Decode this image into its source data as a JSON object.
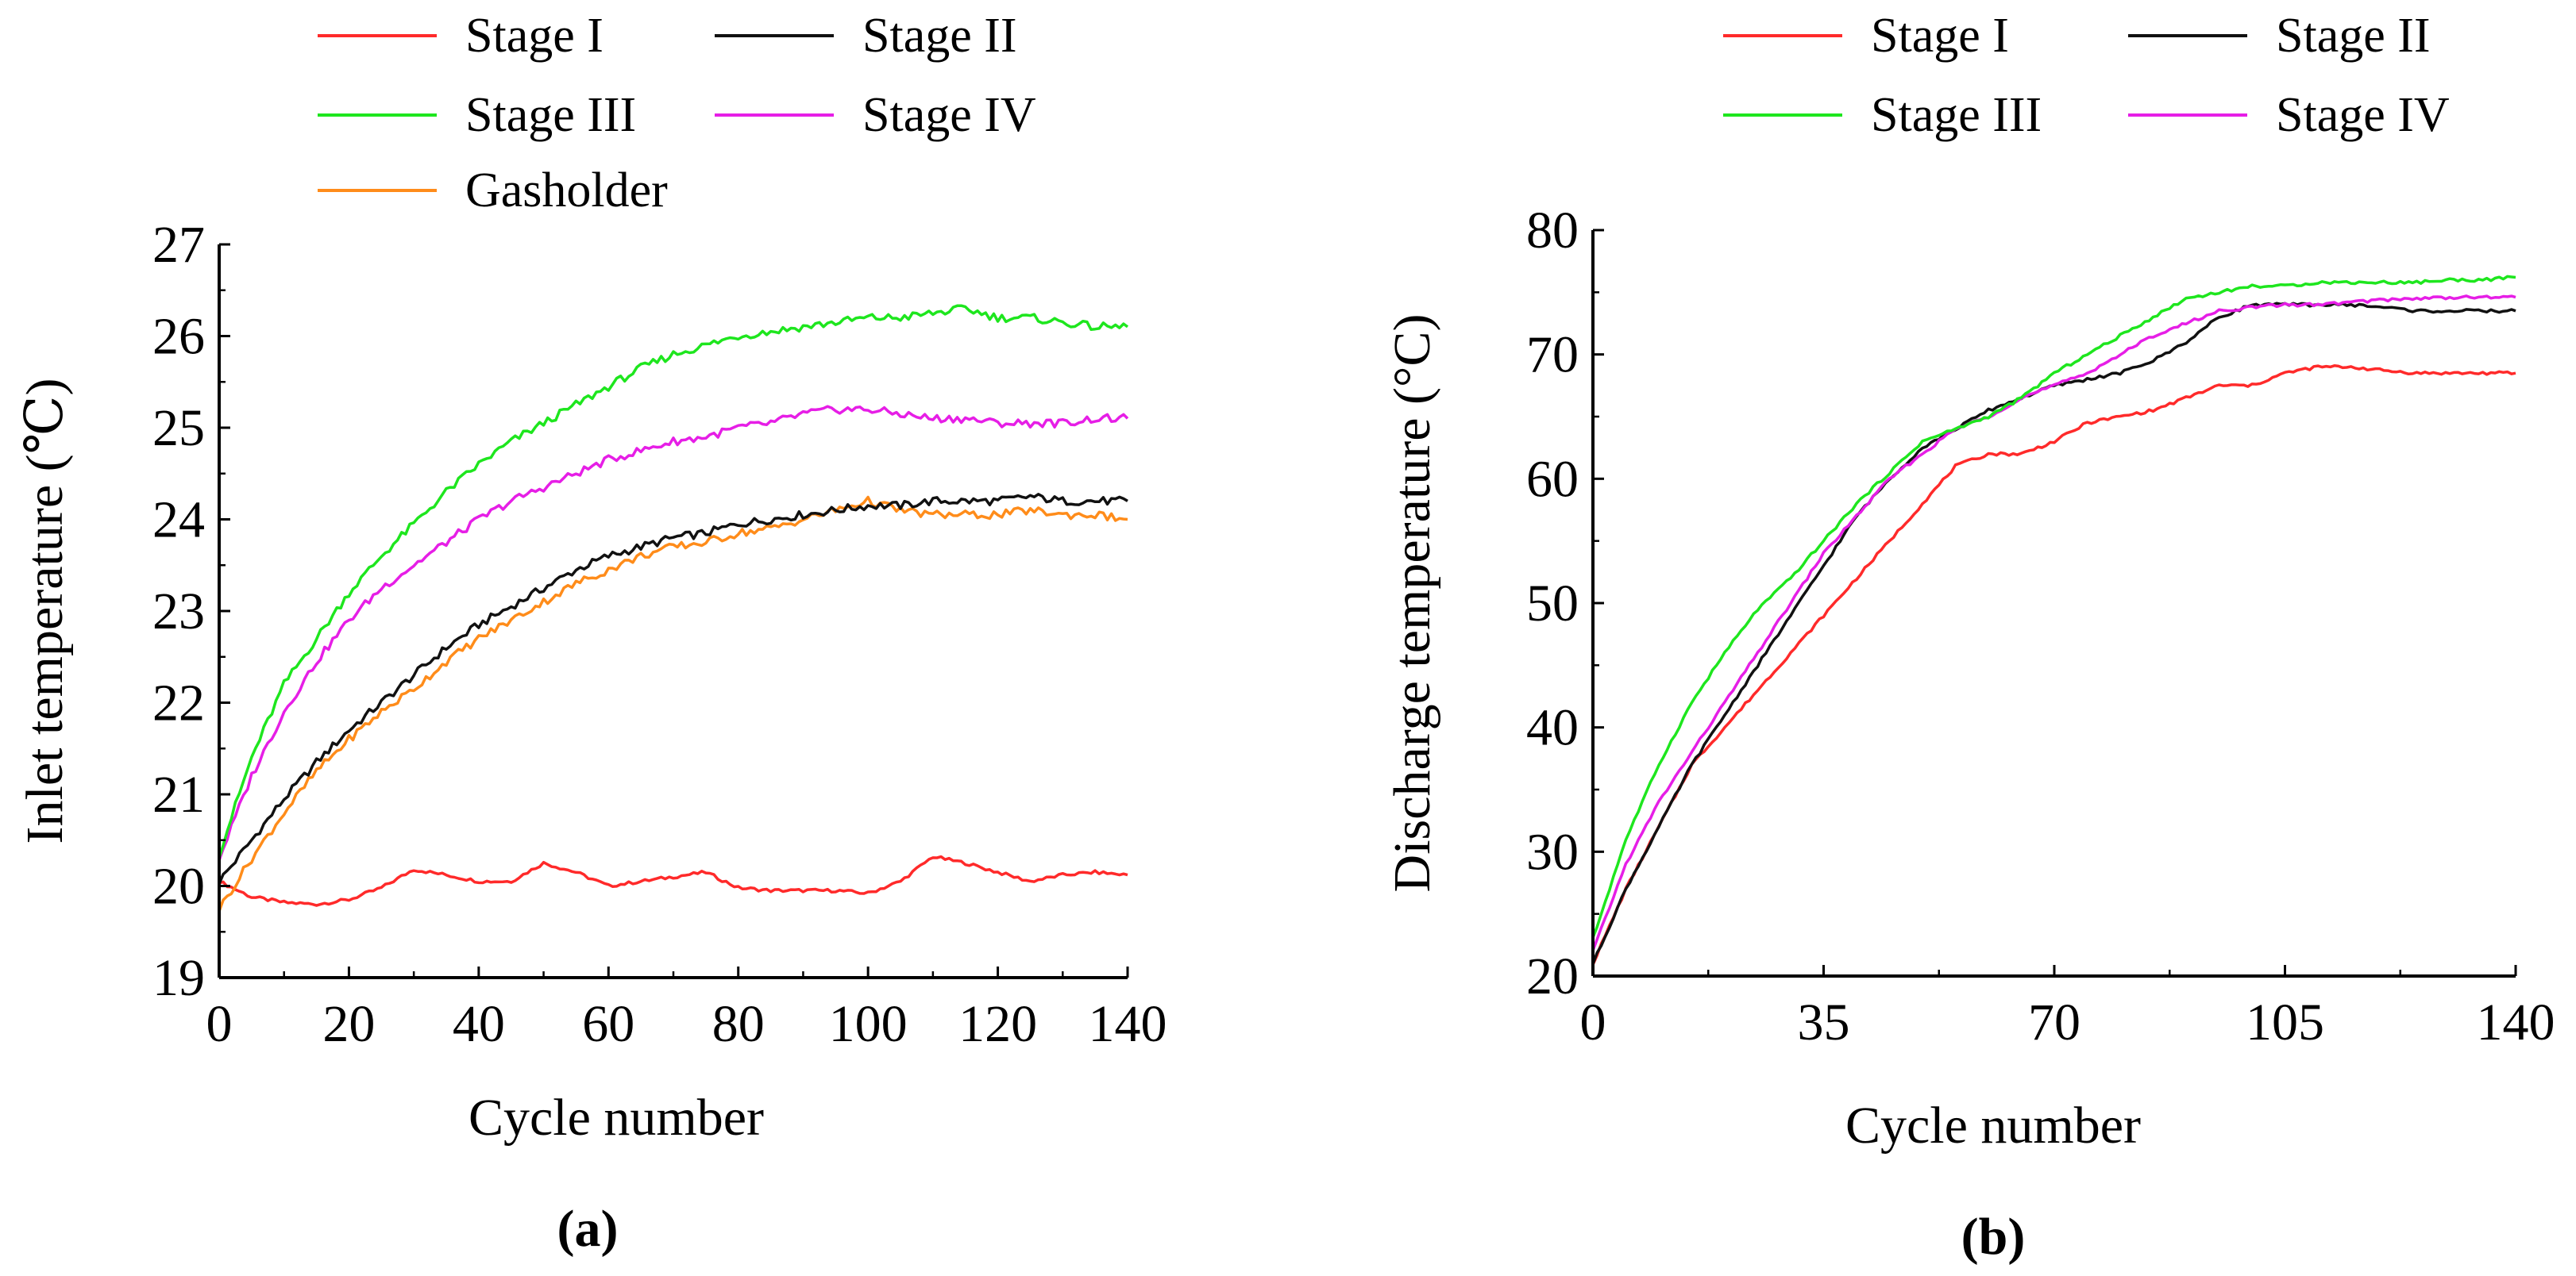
{
  "chart_data": [
    {
      "type": "line",
      "caption": "(a)",
      "xlabel": "Cycle number",
      "ylabel": "Inlet temperature (℃)",
      "xlim": [
        0,
        140
      ],
      "ylim": [
        19,
        27
      ],
      "x_ticks": [
        0,
        20,
        40,
        60,
        80,
        100,
        120,
        140
      ],
      "y_ticks": [
        19,
        20,
        21,
        22,
        23,
        24,
        25,
        26,
        27
      ],
      "legend": {
        "position": "top",
        "columns": 2
      },
      "series": [
        {
          "name": "Stage I",
          "color": "#ff2a2a",
          "x": [
            0,
            5,
            10,
            15,
            20,
            25,
            30,
            35,
            40,
            45,
            50,
            55,
            60,
            65,
            70,
            75,
            80,
            85,
            90,
            95,
            100,
            105,
            110,
            115,
            120,
            125,
            130,
            135,
            140
          ],
          "y": [
            20.05,
            19.88,
            19.82,
            19.8,
            19.85,
            19.98,
            20.18,
            20.12,
            20.05,
            20.05,
            20.25,
            20.15,
            20.0,
            20.05,
            20.1,
            20.15,
            19.98,
            19.95,
            19.95,
            19.95,
            19.92,
            20.05,
            20.32,
            20.25,
            20.15,
            20.05,
            20.12,
            20.15,
            20.12
          ]
        },
        {
          "name": "Stage II",
          "color": "#111111",
          "x": [
            0,
            5,
            10,
            15,
            20,
            25,
            30,
            35,
            40,
            45,
            50,
            55,
            60,
            65,
            70,
            75,
            80,
            85,
            90,
            95,
            100,
            105,
            110,
            115,
            120,
            125,
            130,
            135,
            140
          ],
          "y": [
            20.05,
            20.5,
            20.95,
            21.35,
            21.7,
            22.0,
            22.3,
            22.6,
            22.85,
            23.05,
            23.25,
            23.45,
            23.6,
            23.7,
            23.8,
            23.85,
            23.95,
            24.0,
            24.05,
            24.1,
            24.15,
            24.15,
            24.2,
            24.2,
            24.2,
            24.25,
            24.2,
            24.2,
            24.2
          ]
        },
        {
          "name": "Stage III",
          "color": "#1ee61e",
          "x": [
            0,
            5,
            10,
            15,
            20,
            25,
            30,
            35,
            40,
            45,
            50,
            55,
            60,
            65,
            70,
            75,
            80,
            85,
            90,
            95,
            100,
            105,
            110,
            115,
            120,
            125,
            130,
            135,
            140
          ],
          "y": [
            20.35,
            21.4,
            22.2,
            22.7,
            23.2,
            23.6,
            23.95,
            24.3,
            24.6,
            24.85,
            25.05,
            25.25,
            25.45,
            25.65,
            25.8,
            25.9,
            26.0,
            26.05,
            26.1,
            26.15,
            26.2,
            26.2,
            26.25,
            26.3,
            26.2,
            26.2,
            26.15,
            26.1,
            26.1
          ]
        },
        {
          "name": "Stage IV",
          "color": "#e61ee6",
          "x": [
            0,
            5,
            10,
            15,
            20,
            25,
            30,
            35,
            40,
            45,
            50,
            55,
            60,
            65,
            70,
            75,
            80,
            85,
            90,
            95,
            100,
            105,
            110,
            115,
            120,
            125,
            130,
            135,
            140
          ],
          "y": [
            20.3,
            21.2,
            21.9,
            22.45,
            22.9,
            23.25,
            23.5,
            23.75,
            24.0,
            24.2,
            24.35,
            24.5,
            24.65,
            24.75,
            24.85,
            24.9,
            25.0,
            25.05,
            25.15,
            25.2,
            25.2,
            25.15,
            25.1,
            25.1,
            25.05,
            25.05,
            25.05,
            25.1,
            25.1
          ]
        },
        {
          "name": "Gasholder",
          "color": "#ff8c1a",
          "x": [
            0,
            5,
            10,
            15,
            20,
            25,
            30,
            35,
            40,
            45,
            50,
            55,
            60,
            65,
            70,
            75,
            80,
            85,
            90,
            95,
            100,
            105,
            110,
            115,
            120,
            125,
            130,
            135,
            140
          ],
          "y": [
            19.75,
            20.3,
            20.8,
            21.25,
            21.6,
            21.9,
            22.15,
            22.45,
            22.7,
            22.9,
            23.1,
            23.3,
            23.45,
            23.6,
            23.7,
            23.75,
            23.85,
            23.9,
            24.0,
            24.1,
            24.2,
            24.1,
            24.05,
            24.05,
            24.05,
            24.1,
            24.05,
            24.05,
            24.0
          ]
        }
      ]
    },
    {
      "type": "line",
      "caption": "(b)",
      "xlabel": "Cycle number",
      "ylabel": "Discharge temperature (°C)",
      "xlim": [
        0,
        140
      ],
      "ylim": [
        20,
        80
      ],
      "x_ticks": [
        0,
        35,
        70,
        105,
        140
      ],
      "y_ticks": [
        20,
        30,
        40,
        50,
        60,
        70,
        80
      ],
      "legend": {
        "position": "top",
        "columns": 2
      },
      "series": [
        {
          "name": "Stage I",
          "color": "#ff2a2a",
          "x": [
            0,
            5,
            10,
            15,
            20,
            25,
            30,
            35,
            40,
            45,
            50,
            55,
            60,
            65,
            70,
            75,
            80,
            85,
            90,
            95,
            100,
            105,
            110,
            115,
            120,
            125,
            130,
            135,
            140
          ],
          "y": [
            21,
            27,
            32,
            37,
            40,
            43,
            46,
            49,
            52,
            55,
            58,
            61,
            62,
            62,
            63,
            64.5,
            65,
            65.5,
            66.5,
            67.5,
            67.5,
            68.5,
            69,
            69,
            68.7,
            68.5,
            68.5,
            68.5,
            68.5
          ]
        },
        {
          "name": "Stage II",
          "color": "#111111",
          "x": [
            0,
            5,
            10,
            15,
            20,
            25,
            30,
            35,
            40,
            45,
            50,
            55,
            60,
            65,
            70,
            75,
            80,
            85,
            90,
            95,
            100,
            105,
            110,
            115,
            120,
            125,
            130,
            135,
            140
          ],
          "y": [
            21,
            27,
            32,
            37,
            41,
            45,
            49,
            53,
            57,
            60,
            62.5,
            64,
            65.5,
            66.5,
            67.5,
            68,
            68.5,
            69.5,
            71,
            73,
            74,
            74,
            74,
            74,
            73.8,
            73.5,
            73.5,
            73.5,
            73.5
          ]
        },
        {
          "name": "Stage III",
          "color": "#1ee61e",
          "x": [
            0,
            5,
            10,
            15,
            20,
            25,
            30,
            35,
            40,
            45,
            50,
            55,
            60,
            65,
            70,
            75,
            80,
            85,
            90,
            95,
            100,
            105,
            110,
            115,
            120,
            125,
            130,
            135,
            140
          ],
          "y": [
            23,
            31,
            37,
            42,
            46,
            49.5,
            52,
            55,
            58,
            60.5,
            63,
            64,
            65,
            66.5,
            68.5,
            70,
            71.5,
            73,
            74.5,
            75,
            75.5,
            75.5,
            75.8,
            75.8,
            75.8,
            75.8,
            76,
            76,
            76.2
          ]
        },
        {
          "name": "Stage IV",
          "color": "#e61ee6",
          "x": [
            0,
            5,
            10,
            15,
            20,
            25,
            30,
            35,
            40,
            45,
            50,
            55,
            60,
            65,
            70,
            75,
            80,
            85,
            90,
            95,
            100,
            105,
            110,
            115,
            120,
            125,
            130,
            135,
            140
          ],
          "y": [
            22,
            29,
            34,
            38,
            42,
            46,
            50,
            54,
            57,
            60,
            62,
            64,
            65,
            66.5,
            67.5,
            68.5,
            70,
            71.5,
            72.5,
            73.5,
            73.8,
            74,
            74,
            74.2,
            74.4,
            74.5,
            74.6,
            74.6,
            74.6
          ]
        }
      ]
    }
  ]
}
